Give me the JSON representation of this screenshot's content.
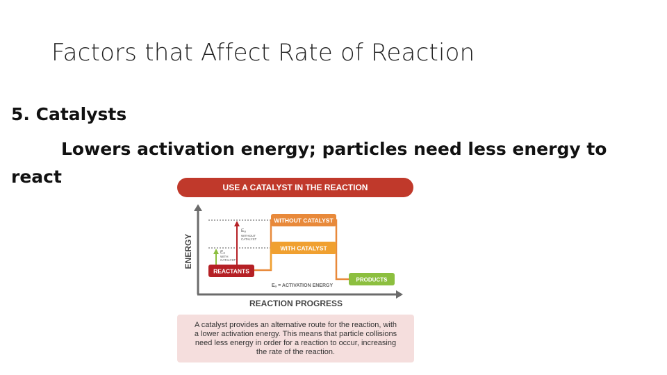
{
  "slide": {
    "title": "Factors that Affect Rate of Reaction",
    "heading": "5. Catalysts",
    "body_line1": "Lowers activation energy; particles need less energy to",
    "body_line2": "react"
  },
  "diagram": {
    "banner": "USE A CATALYST IN THE REACTION",
    "y_axis_label": "ENERGY",
    "x_axis_label": "REACTION PROGRESS",
    "without_catalyst": "WITHOUT CATALYST",
    "with_catalyst": "WITH CATALYST",
    "reactants": "REACTANTS",
    "products": "PRODUCTS",
    "ea_legend": "Eₐ = ACTIVATION ENERGY",
    "ea_without_symbol": "Eₐ",
    "ea_without_l1": "WITHOUT",
    "ea_without_l2": "CATALYST",
    "ea_with_symbol": "Eₐ",
    "ea_with_l1": "WITH",
    "ea_with_l2": "CATALYST",
    "caption": "A catalyst provides an alternative route for the reaction, with a lower activation energy. This means that particle collisions need less energy in order for a reaction to occur, increasing the rate of the reaction.",
    "colors": {
      "banner": "#c0392b",
      "without": "#e8893a",
      "with": "#f0a030",
      "reactants": "#b52025",
      "products": "#8cbf3f",
      "axis": "#6b6b6b",
      "caption_bg": "#f5dedd"
    }
  }
}
